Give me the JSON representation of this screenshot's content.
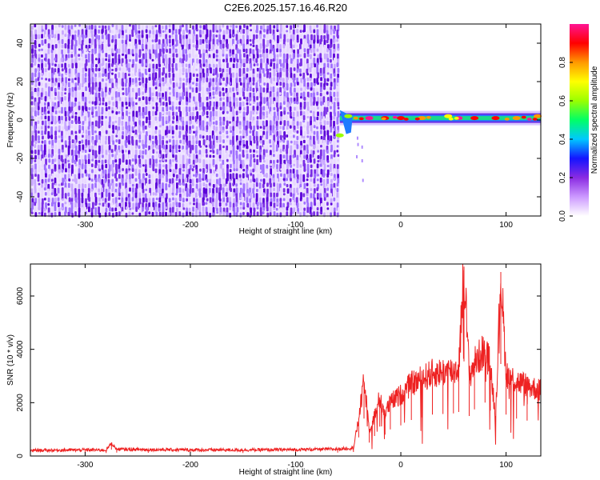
{
  "title": "C2E6.2025.157.16.46.R20",
  "chart_data": [
    {
      "type": "heatmap",
      "xlabel": "Height of straight line (km)",
      "ylabel": "Frequency (Hz)",
      "xlim": [
        -352,
        133
      ],
      "ylim": [
        -50,
        50
      ],
      "x_ticks": [
        -300,
        -200,
        -100,
        0,
        100
      ],
      "y_ticks": [
        -40,
        -20,
        0,
        20,
        40
      ],
      "colorbar": {
        "label": "Normalized spectral amplitude",
        "range": [
          0,
          1
        ],
        "ticks": [
          "0.0",
          "0.2",
          "0.4",
          "0.6",
          "0.8"
        ],
        "colors": [
          "#ffffff",
          "#cc99ff",
          "#8a2be2",
          "#1414ff",
          "#00c8ff",
          "#00ff66",
          "#9aff00",
          "#ffff00",
          "#ff9900",
          "#ff0000",
          "#ff1493"
        ]
      },
      "features": {
        "noise_region_x": [
          -352,
          -58
        ],
        "noise_colors": [
          "#e8d8ff",
          "#c9a8ff",
          "#a070ff",
          "#7a2ee6",
          "#5a00d8"
        ],
        "signal_start_x": -58,
        "signal_frequency_hz": 1,
        "signal_peaks": [
          [
            -58,
            -8,
            0.55
          ],
          [
            -50,
            2,
            0.6
          ],
          [
            -30,
            1,
            0.95
          ],
          [
            -15,
            1,
            0.9
          ],
          [
            0,
            1,
            0.85
          ],
          [
            20,
            1,
            0.8
          ],
          [
            45,
            2,
            0.7
          ],
          [
            55,
            1,
            0.95
          ],
          [
            70,
            1,
            0.9
          ],
          [
            90,
            1,
            0.85
          ],
          [
            110,
            1,
            0.8
          ],
          [
            130,
            2,
            0.75
          ]
        ]
      }
    },
    {
      "type": "line",
      "xlabel": "Height of straight line (km)",
      "ylabel": "SNR (10 * v/v)",
      "xlim": [
        -352,
        133
      ],
      "ylim": [
        0,
        7200
      ],
      "x_ticks": [
        -300,
        -200,
        -100,
        0,
        100
      ],
      "y_ticks": [
        0,
        2000,
        4000,
        6000
      ],
      "color": "#ee2222",
      "series": [
        {
          "x": [
            -352,
            -300,
            -280,
            -275,
            -270,
            -240,
            -200,
            -150,
            -100,
            -60,
            -45,
            -40,
            -35,
            -30,
            -25,
            -20,
            -15,
            -10,
            0,
            10,
            20,
            30,
            40,
            50,
            55,
            60,
            65,
            70,
            80,
            85,
            90,
            95,
            100,
            110,
            120,
            133
          ],
          "y": [
            210,
            230,
            220,
            480,
            250,
            240,
            230,
            225,
            240,
            260,
            300,
            1400,
            2800,
            1000,
            1500,
            2200,
            1600,
            2000,
            2300,
            2700,
            2900,
            3100,
            3150,
            3200,
            3300,
            7100,
            3000,
            3500,
            4000,
            3400,
            1500,
            6900,
            3100,
            2800,
            2650,
            2450
          ]
        }
      ]
    }
  ]
}
